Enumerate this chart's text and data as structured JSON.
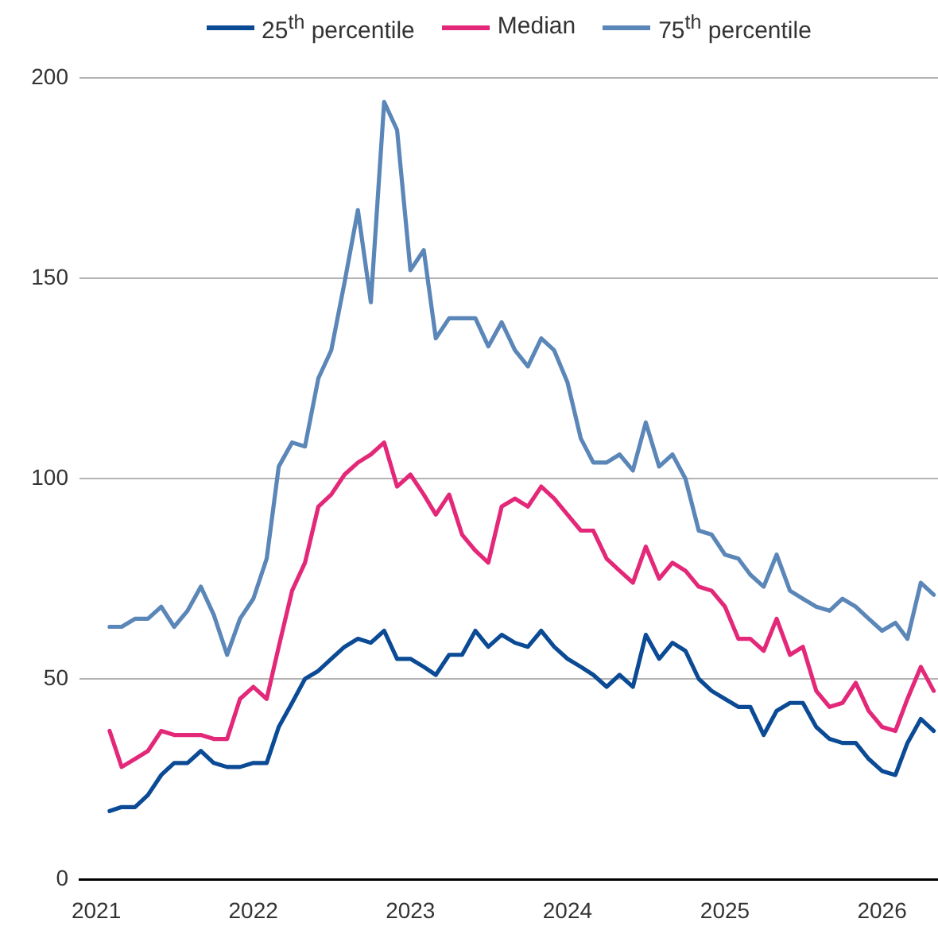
{
  "chart_data": {
    "type": "line",
    "x": [
      "2021-02",
      "2021-03",
      "2021-04",
      "2021-05",
      "2021-06",
      "2021-07",
      "2021-08",
      "2021-09",
      "2021-10",
      "2021-11",
      "2021-12",
      "2022-01",
      "2022-02",
      "2022-03",
      "2022-04",
      "2022-05",
      "2022-06",
      "2022-07",
      "2022-08",
      "2022-09",
      "2022-10",
      "2022-11",
      "2022-12",
      "2023-01",
      "2023-02",
      "2023-03",
      "2023-04",
      "2023-05",
      "2023-06",
      "2023-07",
      "2023-08",
      "2023-09",
      "2023-10",
      "2023-11",
      "2023-12",
      "2024-01",
      "2024-02",
      "2024-03",
      "2024-04",
      "2024-05",
      "2024-06",
      "2024-07",
      "2024-08",
      "2024-09",
      "2024-10",
      "2024-11",
      "2024-12",
      "2025-01",
      "2025-02",
      "2025-03",
      "2025-04",
      "2025-05",
      "2025-06",
      "2025-07",
      "2025-08",
      "2025-09",
      "2025-10",
      "2025-11",
      "2025-12",
      "2026-01",
      "2026-02",
      "2026-03",
      "2026-04",
      "2026-05"
    ],
    "series": [
      {
        "name": "25$^{th}$ percentile",
        "color": "#0b4a94",
        "values": [
          17,
          18,
          18,
          21,
          26,
          29,
          29,
          32,
          29,
          28,
          28,
          29,
          29,
          38,
          44,
          50,
          52,
          55,
          58,
          60,
          59,
          62,
          55,
          55,
          53,
          51,
          56,
          56,
          62,
          58,
          61,
          59,
          58,
          62,
          58,
          55,
          53,
          51,
          48,
          51,
          48,
          61,
          55,
          59,
          57,
          50,
          47,
          45,
          43,
          43,
          36,
          42,
          44,
          44,
          38,
          35,
          34,
          34,
          30,
          27,
          26,
          34,
          40,
          37
        ]
      },
      {
        "name": "Median",
        "color": "#e32879",
        "values": [
          37,
          28,
          30,
          32,
          37,
          36,
          36,
          36,
          35,
          35,
          45,
          48,
          45,
          58,
          72,
          79,
          93,
          96,
          101,
          104,
          106,
          109,
          98,
          101,
          96,
          91,
          96,
          86,
          82,
          79,
          93,
          95,
          93,
          98,
          95,
          91,
          87,
          87,
          80,
          77,
          74,
          83,
          75,
          79,
          77,
          73,
          72,
          68,
          60,
          60,
          57,
          65,
          56,
          58,
          47,
          43,
          44,
          49,
          42,
          38,
          37,
          45,
          53,
          47
        ]
      },
      {
        "name": "75$^{th}$ percentile",
        "color": "#5b86b8",
        "values": [
          63,
          63,
          65,
          65,
          68,
          63,
          67,
          73,
          66,
          56,
          65,
          70,
          80,
          103,
          109,
          108,
          125,
          132,
          149,
          167,
          144,
          194,
          187,
          152,
          157,
          135,
          140,
          140,
          140,
          133,
          139,
          132,
          128,
          135,
          132,
          124,
          110,
          104,
          104,
          106,
          102,
          114,
          103,
          106,
          100,
          87,
          86,
          81,
          80,
          76,
          73,
          81,
          72,
          70,
          68,
          67,
          70,
          68,
          65,
          62,
          64,
          60,
          74,
          71
        ]
      }
    ],
    "xlim": [
      "2020-11-23",
      "2026-05-11"
    ],
    "xticks": [
      "2021",
      "2022",
      "2023",
      "2024",
      "2025",
      "2026"
    ],
    "ylim": [
      0,
      200
    ],
    "yticks": [
      0,
      50,
      100,
      150,
      200
    ],
    "grid": "y",
    "legend": "top",
    "marker": "none"
  }
}
